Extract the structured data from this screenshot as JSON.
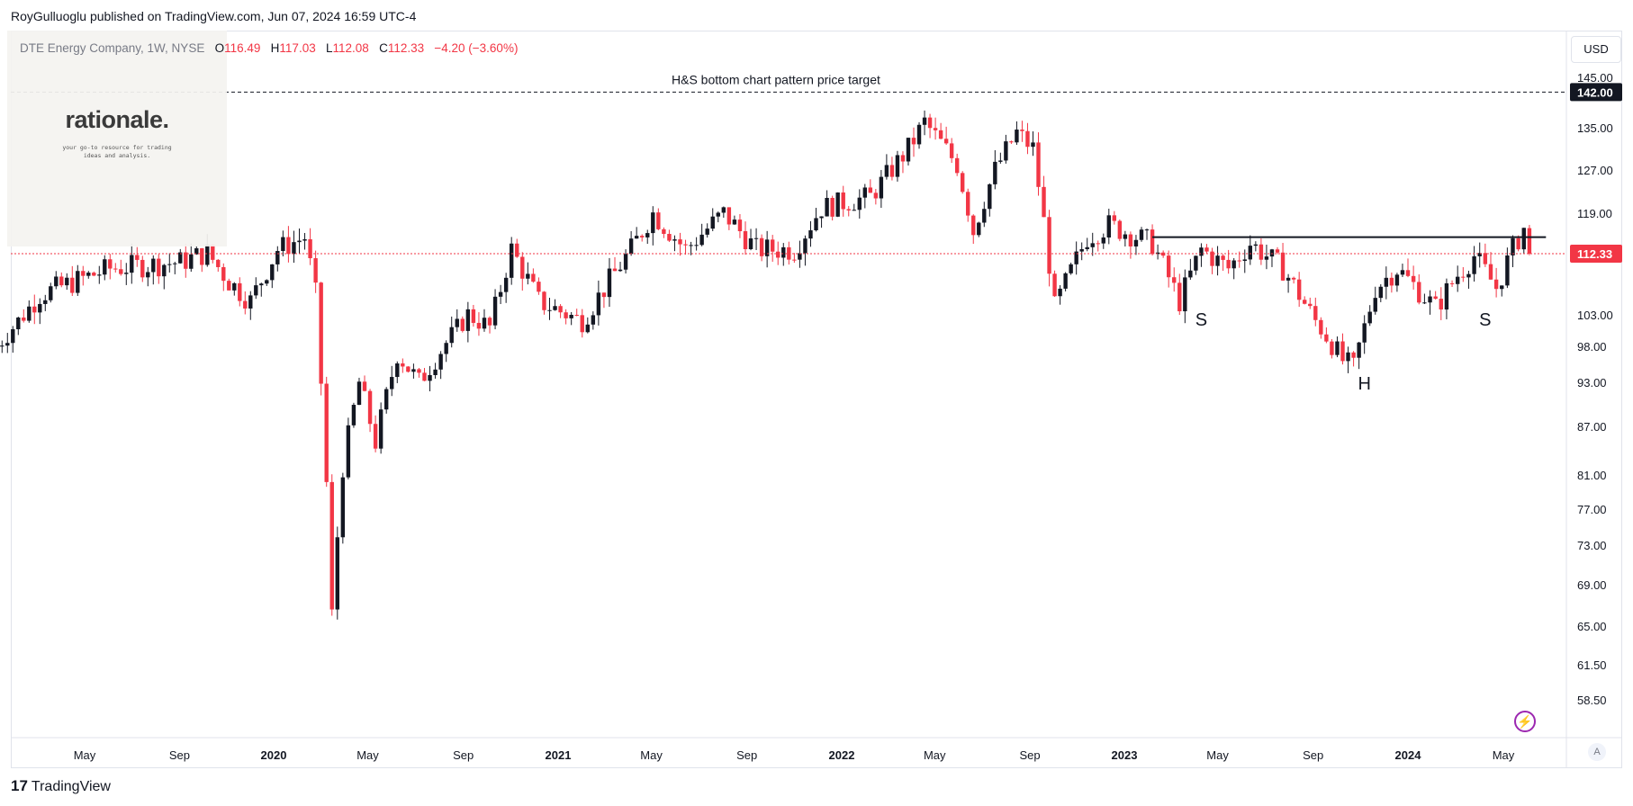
{
  "header": {
    "publisher_line": "RoyGulluoglu published on TradingView.com, Jun 07, 2024 16:59 UTC-4"
  },
  "legend": {
    "symbol": "DTE Energy Company, 1W, NYSE",
    "o_label": "O",
    "o_value": "116.49",
    "h_label": "H",
    "h_value": "117.03",
    "l_label": "L",
    "l_value": "112.08",
    "c_label": "C",
    "c_value": "112.33",
    "change": "−4.20 (−3.60%)"
  },
  "logo": {
    "title": "rationale.",
    "tagline": "your go-to resource for trading ideas and analysis."
  },
  "currency_button": "USD",
  "footer": {
    "brand": "TradingView",
    "icon": "tradingview-logo-icon"
  },
  "colors": {
    "up": "#131722",
    "down": "#f23645",
    "price_line": "#f23645",
    "label_bg": "#131722"
  },
  "chart_data": {
    "type": "candlestick",
    "title": "DTE Energy Company, 1W, NYSE",
    "y_ticks": [
      145.0,
      135.0,
      127.0,
      119.0,
      112.33,
      103.0,
      98.0,
      93.0,
      87.0,
      81.0,
      77.0,
      73.0,
      69.0,
      65.0,
      61.5,
      58.5
    ],
    "y_tick_labels": [
      "145.00",
      "135.00",
      "127.00",
      "119.00",
      "112.33",
      "103.00",
      "98.00",
      "93.00",
      "87.00",
      "81.00",
      "77.00",
      "73.00",
      "69.00",
      "65.00",
      "61.50",
      "58.50"
    ],
    "x_tick_labels": [
      "May",
      "Sep",
      "2020",
      "May",
      "Sep",
      "2021",
      "May",
      "Sep",
      "2022",
      "May",
      "Sep",
      "2023",
      "May",
      "Sep",
      "2024",
      "May"
    ],
    "bold_x_labels": [
      "2020",
      "2021",
      "2022",
      "2023",
      "2024"
    ],
    "price_axis_scale": "log",
    "last_price": 112.33,
    "last_price_label": "112.33",
    "target_price": 142.0,
    "target_price_label": "142.00",
    "target_annotation": "H&S bottom chart pattern price target",
    "neckline_price": 115.0,
    "pattern_labels": [
      {
        "text": "S",
        "date": "2023-04-10",
        "price": 103.0
      },
      {
        "text": "H",
        "date": "2023-11-06",
        "price": 93.5
      },
      {
        "text": "S",
        "date": "2024-04-08",
        "price": 103.0
      }
    ],
    "grid": false,
    "weekly_closes_anchor": [
      {
        "date": "2019-01-07",
        "close": 98.0
      },
      {
        "date": "2019-03-04",
        "close": 106.0
      },
      {
        "date": "2019-06-03",
        "close": 110.0
      },
      {
        "date": "2019-09-02",
        "close": 111.0
      },
      {
        "date": "2019-10-07",
        "close": 112.5
      },
      {
        "date": "2019-11-04",
        "close": 108.0
      },
      {
        "date": "2019-12-02",
        "close": 105.0
      },
      {
        "date": "2020-01-06",
        "close": 113.0
      },
      {
        "date": "2020-02-10",
        "close": 115.0
      },
      {
        "date": "2020-02-24",
        "close": 106.0
      },
      {
        "date": "2020-03-09",
        "close": 80.0
      },
      {
        "date": "2020-03-16",
        "close": 66.0
      },
      {
        "date": "2020-03-30",
        "close": 82.0
      },
      {
        "date": "2020-04-20",
        "close": 93.0
      },
      {
        "date": "2020-05-11",
        "close": 85.0
      },
      {
        "date": "2020-06-08",
        "close": 97.0
      },
      {
        "date": "2020-07-06",
        "close": 93.0
      },
      {
        "date": "2020-09-07",
        "close": 103.0
      },
      {
        "date": "2020-10-05",
        "close": 101.0
      },
      {
        "date": "2020-11-02",
        "close": 113.0
      },
      {
        "date": "2020-12-07",
        "close": 105.0
      },
      {
        "date": "2021-02-01",
        "close": 102.0
      },
      {
        "date": "2021-04-05",
        "close": 113.0
      },
      {
        "date": "2021-05-03",
        "close": 119.0
      },
      {
        "date": "2021-06-14",
        "close": 113.0
      },
      {
        "date": "2021-08-02",
        "close": 119.0
      },
      {
        "date": "2021-09-13",
        "close": 113.0
      },
      {
        "date": "2021-11-01",
        "close": 113.0
      },
      {
        "date": "2021-12-06",
        "close": 120.0
      },
      {
        "date": "2022-02-07",
        "close": 122.0
      },
      {
        "date": "2022-03-28",
        "close": 131.0
      },
      {
        "date": "2022-04-18",
        "close": 136.0
      },
      {
        "date": "2022-05-30",
        "close": 128.0
      },
      {
        "date": "2022-06-20",
        "close": 116.0
      },
      {
        "date": "2022-07-18",
        "close": 127.0
      },
      {
        "date": "2022-08-15",
        "close": 134.0
      },
      {
        "date": "2022-09-05",
        "close": 131.0
      },
      {
        "date": "2022-10-03",
        "close": 104.0
      },
      {
        "date": "2022-11-14",
        "close": 115.0
      },
      {
        "date": "2022-12-12",
        "close": 117.0
      },
      {
        "date": "2023-02-06",
        "close": 114.0
      },
      {
        "date": "2023-03-13",
        "close": 105.0
      },
      {
        "date": "2023-04-10",
        "close": 113.0
      },
      {
        "date": "2023-05-15",
        "close": 110.0
      },
      {
        "date": "2023-06-12",
        "close": 114.0
      },
      {
        "date": "2023-07-24",
        "close": 110.0
      },
      {
        "date": "2023-09-04",
        "close": 102.0
      },
      {
        "date": "2023-10-09",
        "close": 96.0
      },
      {
        "date": "2023-10-23",
        "close": 95.0
      },
      {
        "date": "2023-11-20",
        "close": 107.0
      },
      {
        "date": "2023-12-18",
        "close": 110.0
      },
      {
        "date": "2024-02-05",
        "close": 104.0
      },
      {
        "date": "2024-03-04",
        "close": 109.0
      },
      {
        "date": "2024-03-25",
        "close": 112.0
      },
      {
        "date": "2024-04-22",
        "close": 107.0
      },
      {
        "date": "2024-05-13",
        "close": 113.0
      },
      {
        "date": "2024-05-27",
        "close": 116.5
      },
      {
        "date": "2024-06-03",
        "close": 112.33
      }
    ]
  }
}
